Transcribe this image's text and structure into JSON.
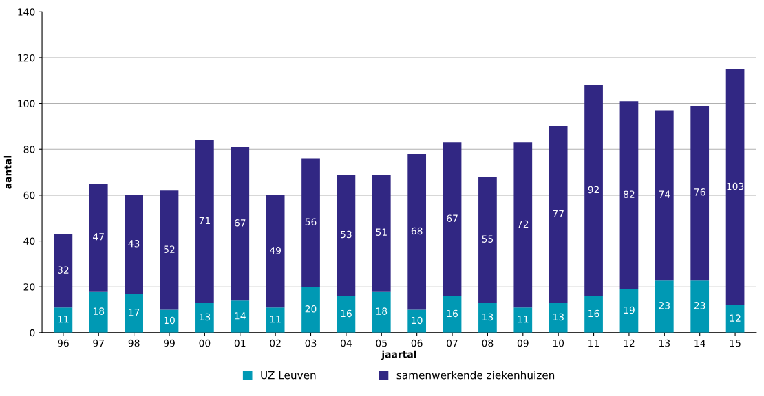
{
  "chart_data": {
    "type": "bar",
    "stacked": true,
    "xlabel": "jaartal",
    "ylabel": "aantal",
    "categories": [
      "96",
      "97",
      "98",
      "99",
      "00",
      "01",
      "02",
      "03",
      "04",
      "05",
      "06",
      "07",
      "08",
      "09",
      "10",
      "11",
      "12",
      "13",
      "14",
      "15"
    ],
    "series": [
      {
        "name": "UZ Leuven",
        "color": "#0099b4",
        "values": [
          11,
          18,
          17,
          10,
          13,
          14,
          11,
          20,
          16,
          18,
          10,
          16,
          13,
          11,
          13,
          16,
          19,
          23,
          23,
          12
        ]
      },
      {
        "name": "samenwerkende ziekenhuizen",
        "color": "#312783",
        "values": [
          32,
          47,
          43,
          52,
          71,
          67,
          49,
          56,
          53,
          51,
          68,
          67,
          55,
          72,
          77,
          92,
          82,
          74,
          76,
          103
        ]
      }
    ],
    "ylim": [
      0,
      140
    ],
    "yticks": [
      0,
      20,
      40,
      60,
      80,
      100,
      120,
      140
    ],
    "grid": "y",
    "legend": "bottom",
    "data_labels": true
  }
}
